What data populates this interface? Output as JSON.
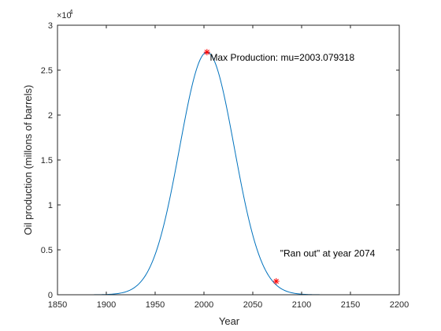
{
  "chart_data": {
    "type": "line",
    "xlabel": "Year",
    "ylabel": "Oil production (millons of barrels)",
    "xlim": [
      1850,
      2200
    ],
    "ylim": [
      0,
      30000
    ],
    "x_ticks": [
      1850,
      1900,
      1950,
      2000,
      2050,
      2100,
      2150,
      2200
    ],
    "y_ticks": [
      0,
      5000,
      10000,
      15000,
      20000,
      25000,
      30000
    ],
    "y_tick_labels": [
      "0",
      "0.5",
      "1",
      "1.5",
      "2",
      "2.5",
      "3"
    ],
    "y_exponent_base": "×10",
    "y_exponent_power": "4",
    "grid": false,
    "curve": {
      "color": "#0072bd",
      "model": "gaussian",
      "peak": 27000,
      "mu": 2003.079318,
      "sigma": 28
    },
    "markers": [
      {
        "x": 2003.08,
        "y": 27000,
        "color": "#ff0000",
        "symbol": "*"
      },
      {
        "x": 2074,
        "y": 1500,
        "color": "#ff0000",
        "symbol": "*"
      }
    ],
    "annotations": [
      {
        "text": "Max Production: mu=2003.079318",
        "x": 2006,
        "y": 26400
      },
      {
        "text": "\"Ran out\" at year 2074",
        "x": 2078,
        "y": 4600
      }
    ]
  }
}
